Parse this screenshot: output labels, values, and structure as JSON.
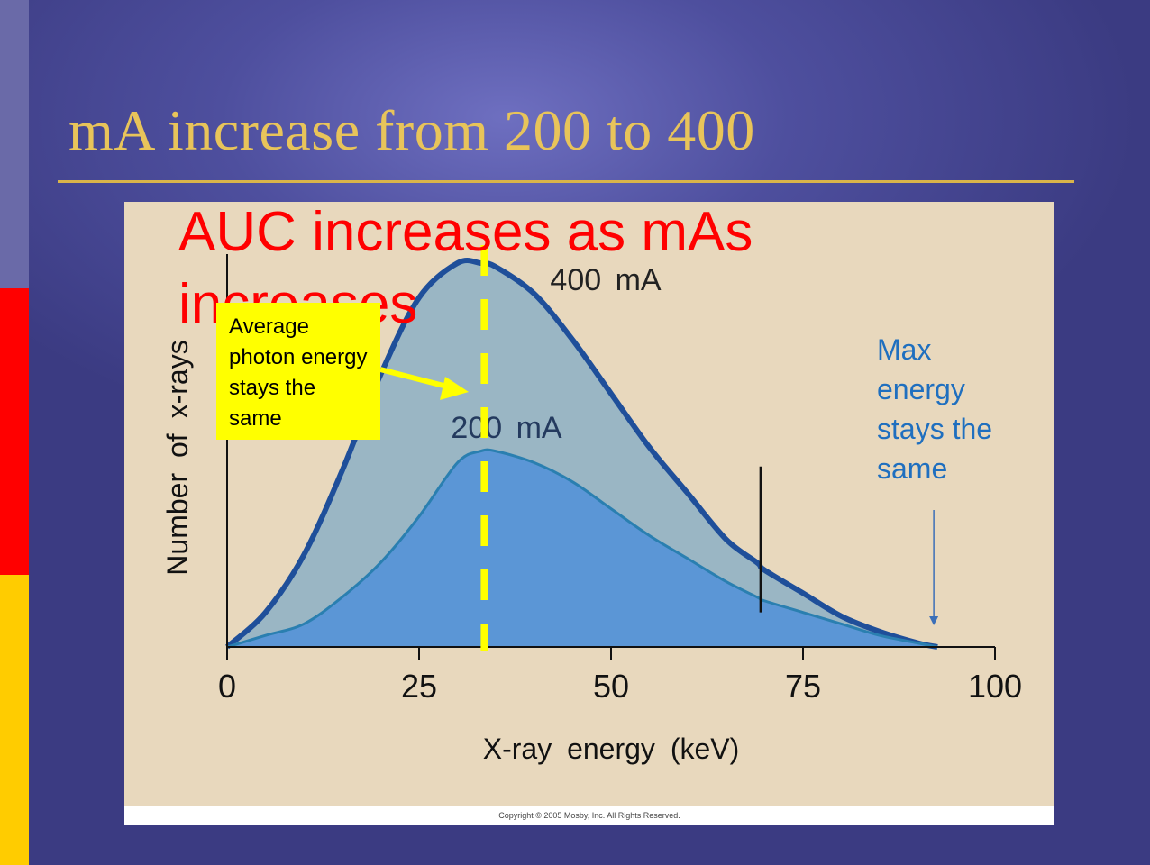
{
  "slide": {
    "title": "mA increase from 200 to 400",
    "auc_text": "AUC increases as mAs increases",
    "avg_box_text": "Average photon energy stays the same",
    "max_note": "Max energy stays the same",
    "copyright": "Copyright © 2005 Mosby, Inc. All Rights Reserved."
  },
  "colors": {
    "title": "#e8c45a",
    "accent_red": "#ff0000",
    "accent_yellow": "#ffff00",
    "note_blue": "#1f6fbf",
    "curve_400": "#1f4f9a",
    "fill_400": "#9ab6c4",
    "curve_200": "#2a7fb0",
    "fill_200": "#5b96d6"
  },
  "chart_data": {
    "type": "area",
    "xlabel": "X-ray energy (keV)",
    "ylabel": "Number of x-rays",
    "xlim": [
      0,
      100
    ],
    "ylim": [
      0,
      1
    ],
    "x_ticks": [
      "0",
      "25",
      "50",
      "75",
      "100"
    ],
    "series": [
      {
        "name": "400 mA",
        "x": [
          0,
          5,
          10,
          15,
          20,
          25,
          30,
          33,
          35,
          40,
          45,
          50,
          55,
          60,
          65,
          69,
          70,
          75,
          80,
          85,
          90,
          92.5
        ],
        "y": [
          0,
          0.09,
          0.24,
          0.46,
          0.71,
          0.91,
          1.0,
          1.0,
          0.99,
          0.92,
          0.8,
          0.66,
          0.52,
          0.4,
          0.28,
          0.22,
          0.2,
          0.14,
          0.08,
          0.04,
          0.01,
          0
        ]
      },
      {
        "name": "200 mA",
        "x": [
          0,
          5,
          10,
          15,
          20,
          25,
          30,
          33,
          35,
          40,
          45,
          50,
          55,
          60,
          65,
          69,
          70,
          75,
          80,
          85,
          90,
          92.5
        ],
        "y": [
          0,
          0.03,
          0.06,
          0.13,
          0.22,
          0.34,
          0.48,
          0.51,
          0.51,
          0.48,
          0.43,
          0.36,
          0.29,
          0.23,
          0.17,
          0.13,
          0.12,
          0.09,
          0.06,
          0.03,
          0.01,
          0
        ]
      }
    ],
    "annotations": [
      {
        "type": "vline-dashed",
        "x": 33.5,
        "meaning": "average photon energy"
      },
      {
        "type": "vline",
        "x": 69.5,
        "y_from": 0.09,
        "y_to": 0.47
      },
      {
        "type": "arrow-down",
        "x": 92.5,
        "meaning": "max energy"
      }
    ]
  }
}
